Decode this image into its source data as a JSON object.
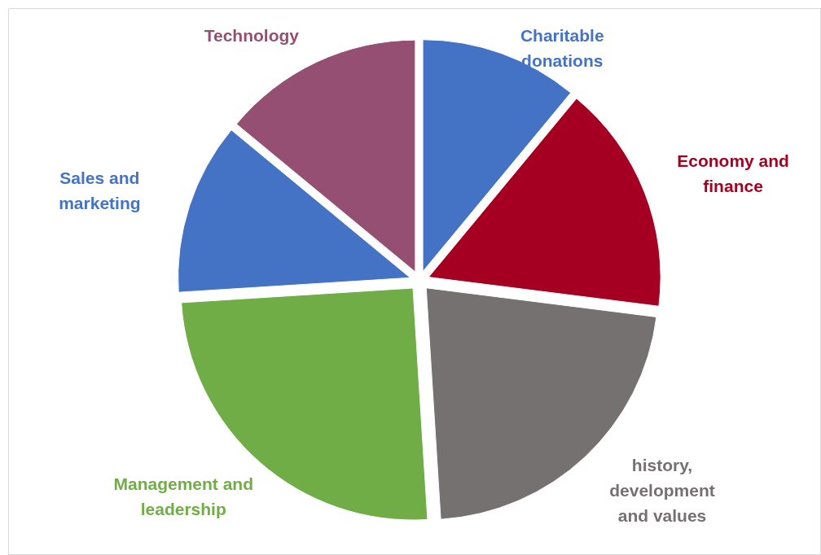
{
  "chart_data": {
    "type": "pie",
    "categories": [
      "Charitable donations",
      "Economy and finance",
      "history, development and values",
      "Management and leadership",
      "Sales and marketing",
      "Technology"
    ],
    "values": [
      11,
      16,
      22,
      25,
      12,
      14
    ],
    "colors": [
      "#4472c4",
      "#a50021",
      "#767171",
      "#70ad47",
      "#4472c4",
      "#954f72"
    ],
    "legend": false
  }
}
